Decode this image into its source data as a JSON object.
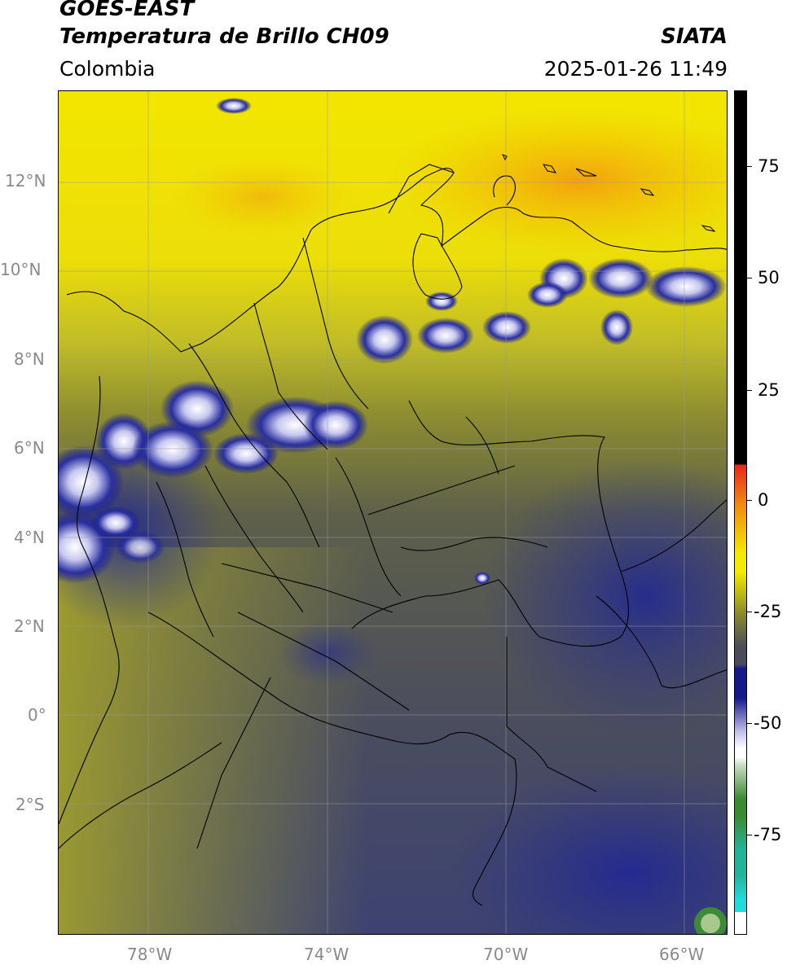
{
  "header": {
    "satellite": "GOES-EAST",
    "product": "Temperatura de Brillo CH09",
    "source": "SIATA",
    "region": "Colombia",
    "datetime": "2025-01-26 11:49"
  },
  "map": {
    "lat_labels": [
      "12°N",
      "10°N",
      "8°N",
      "6°N",
      "4°N",
      "2°N",
      "0°",
      "2°S"
    ],
    "lon_labels": [
      "78°W",
      "74°W",
      "70°W",
      "66°W"
    ]
  },
  "colorbar": {
    "tick_labels": [
      "75",
      "50",
      "25",
      "0",
      "-25",
      "-50",
      "-75"
    ],
    "colors": {
      "black": "#000000",
      "red": "#e8261a",
      "orange": "#f08a10",
      "yellow": "#f4ec00",
      "olive": "#8a8a2c",
      "gray": "#4a4c5a",
      "navy": "#14198a",
      "white": "#ffffff",
      "green": "#3a8a32",
      "teal": "#22b49a",
      "cyan": "#22dcdc"
    }
  }
}
